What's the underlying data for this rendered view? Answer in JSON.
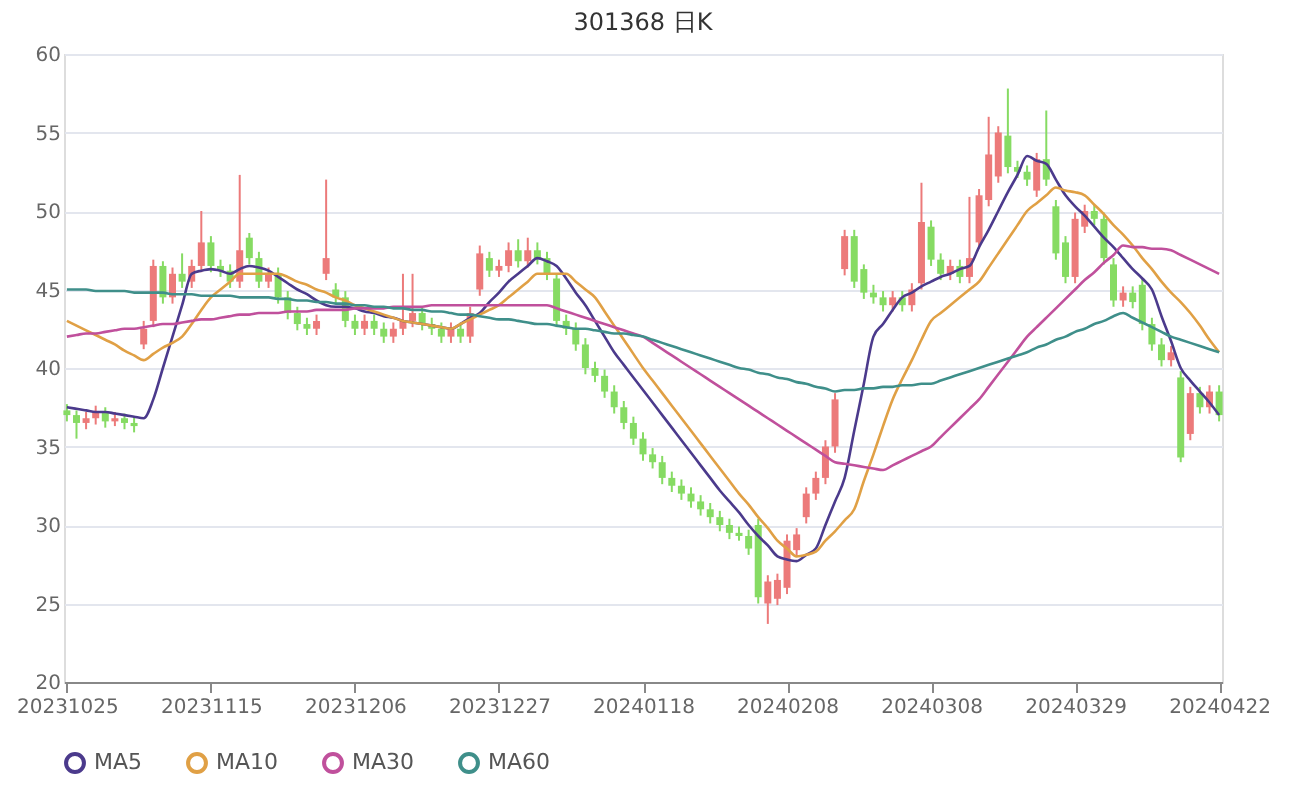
{
  "chart_data": {
    "type": "candlestick",
    "title": "301368    日K",
    "categories": [
      "20231025",
      null,
      null,
      null,
      null,
      null,
      null,
      null,
      null,
      null,
      null,
      null,
      null,
      null,
      null,
      "20231115",
      null,
      null,
      null,
      null,
      null,
      null,
      null,
      null,
      null,
      null,
      null,
      null,
      null,
      null,
      "20231206",
      null,
      null,
      null,
      null,
      null,
      null,
      null,
      null,
      null,
      null,
      null,
      null,
      null,
      null,
      "20231227",
      null,
      null,
      null,
      null,
      null,
      null,
      null,
      null,
      null,
      null,
      null,
      null,
      null,
      null,
      "20240118",
      null,
      null,
      null,
      null,
      null,
      null,
      null,
      null,
      null,
      null,
      null,
      null,
      null,
      null,
      "20240208",
      null,
      null,
      null,
      null,
      null,
      null,
      null,
      null,
      null,
      null,
      null,
      null,
      null,
      null,
      "20240308",
      null,
      null,
      null,
      null,
      null,
      null,
      null,
      null,
      null,
      null,
      null,
      null,
      null,
      null,
      "20240329",
      null,
      null,
      null,
      null,
      null,
      null,
      null,
      null,
      null,
      null,
      null,
      null,
      null,
      null,
      "20240422"
    ],
    "ohlc": [
      [
        37.3,
        37.7,
        36.6,
        37.0
      ],
      [
        37.0,
        37.3,
        35.5,
        36.5
      ],
      [
        36.5,
        37.2,
        36.1,
        36.8
      ],
      [
        36.8,
        37.6,
        36.4,
        37.2
      ],
      [
        37.2,
        37.5,
        36.2,
        36.6
      ],
      [
        36.6,
        37.2,
        36.3,
        36.8
      ],
      [
        36.8,
        37.1,
        36.1,
        36.5
      ],
      [
        36.5,
        36.9,
        35.9,
        36.3
      ],
      [
        41.5,
        43.0,
        41.2,
        42.5
      ],
      [
        43.0,
        46.9,
        42.6,
        46.5
      ],
      [
        46.5,
        46.8,
        44.1,
        44.5
      ],
      [
        44.5,
        46.4,
        44.1,
        46.0
      ],
      [
        46.0,
        47.3,
        45.1,
        45.5
      ],
      [
        45.5,
        46.9,
        45.1,
        46.5
      ],
      [
        46.5,
        50.0,
        46.1,
        48.0
      ],
      [
        48.0,
        48.4,
        46.1,
        46.5
      ],
      [
        46.5,
        46.9,
        45.8,
        46.2
      ],
      [
        46.2,
        46.6,
        45.1,
        45.5
      ],
      [
        45.5,
        52.3,
        45.1,
        47.5
      ],
      [
        48.3,
        48.6,
        46.6,
        47.0
      ],
      [
        47.0,
        47.4,
        45.1,
        45.5
      ],
      [
        45.5,
        46.4,
        45.1,
        46.0
      ],
      [
        46.0,
        46.4,
        44.1,
        44.5
      ],
      [
        44.5,
        44.9,
        43.1,
        43.5
      ],
      [
        43.5,
        43.9,
        42.4,
        42.8
      ],
      [
        42.8,
        43.2,
        42.1,
        42.5
      ],
      [
        42.5,
        43.4,
        42.1,
        43.0
      ],
      [
        46.0,
        52.0,
        45.6,
        47.0
      ],
      [
        45.0,
        45.4,
        44.1,
        44.5
      ],
      [
        44.5,
        44.9,
        42.6,
        43.0
      ],
      [
        43.0,
        43.4,
        42.1,
        42.5
      ],
      [
        42.5,
        43.4,
        42.1,
        43.0
      ],
      [
        43.0,
        43.4,
        42.1,
        42.5
      ],
      [
        42.5,
        42.9,
        41.6,
        42.0
      ],
      [
        42.0,
        42.9,
        41.6,
        42.5
      ],
      [
        42.5,
        46.0,
        42.1,
        43.0
      ],
      [
        43.0,
        46.0,
        42.6,
        43.5
      ],
      [
        43.5,
        43.9,
        42.4,
        42.8
      ],
      [
        42.8,
        43.2,
        42.1,
        42.5
      ],
      [
        42.5,
        42.9,
        41.6,
        42.0
      ],
      [
        42.0,
        42.9,
        41.6,
        42.5
      ],
      [
        42.5,
        42.9,
        41.6,
        42.0
      ],
      [
        42.0,
        43.9,
        41.6,
        43.5
      ],
      [
        45.0,
        47.8,
        44.6,
        47.3
      ],
      [
        47.0,
        47.4,
        45.8,
        46.2
      ],
      [
        46.2,
        46.9,
        45.8,
        46.5
      ],
      [
        46.5,
        48.0,
        46.1,
        47.5
      ],
      [
        47.5,
        48.2,
        46.4,
        46.8
      ],
      [
        46.8,
        48.3,
        46.4,
        47.5
      ],
      [
        47.5,
        48.0,
        46.6,
        47.0
      ],
      [
        47.0,
        47.4,
        45.6,
        46.0
      ],
      [
        45.7,
        46.0,
        42.6,
        43.0
      ],
      [
        43.0,
        43.4,
        42.1,
        42.5
      ],
      [
        42.5,
        42.9,
        41.1,
        41.5
      ],
      [
        41.5,
        41.9,
        39.6,
        40.0
      ],
      [
        40.0,
        40.4,
        39.1,
        39.5
      ],
      [
        39.5,
        39.9,
        38.1,
        38.5
      ],
      [
        38.5,
        38.9,
        37.1,
        37.5
      ],
      [
        37.5,
        37.9,
        36.1,
        36.5
      ],
      [
        36.5,
        36.9,
        35.1,
        35.5
      ],
      [
        35.5,
        35.9,
        34.1,
        34.5
      ],
      [
        34.5,
        34.9,
        33.6,
        34.0
      ],
      [
        34.0,
        34.4,
        32.6,
        33.0
      ],
      [
        33.0,
        33.4,
        32.1,
        32.5
      ],
      [
        32.5,
        32.9,
        31.6,
        32.0
      ],
      [
        32.0,
        32.4,
        31.1,
        31.5
      ],
      [
        31.5,
        31.9,
        30.6,
        31.0
      ],
      [
        31.0,
        31.4,
        30.1,
        30.5
      ],
      [
        30.5,
        30.9,
        29.6,
        30.0
      ],
      [
        30.0,
        30.4,
        29.1,
        29.5
      ],
      [
        29.5,
        29.9,
        29.0,
        29.3
      ],
      [
        29.3,
        29.7,
        28.1,
        28.5
      ],
      [
        30.0,
        30.4,
        25.0,
        25.4
      ],
      [
        25.0,
        26.8,
        23.7,
        26.4
      ],
      [
        25.3,
        26.9,
        24.9,
        26.5
      ],
      [
        26.0,
        29.4,
        25.6,
        29.0
      ],
      [
        28.4,
        29.8,
        28.0,
        29.4
      ],
      [
        30.5,
        32.4,
        30.1,
        32.0
      ],
      [
        32.0,
        33.4,
        31.6,
        33.0
      ],
      [
        33.0,
        35.4,
        32.6,
        35.0
      ],
      [
        35.0,
        38.4,
        34.6,
        38.0
      ],
      [
        46.3,
        48.8,
        45.9,
        48.4
      ],
      [
        48.4,
        48.8,
        45.1,
        45.5
      ],
      [
        46.3,
        46.6,
        44.4,
        44.8
      ],
      [
        44.8,
        45.3,
        44.1,
        44.5
      ],
      [
        44.5,
        44.9,
        43.6,
        44.0
      ],
      [
        44.0,
        44.9,
        43.6,
        44.5
      ],
      [
        44.5,
        44.9,
        43.6,
        44.0
      ],
      [
        44.0,
        45.4,
        43.6,
        45.0
      ],
      [
        45.4,
        51.8,
        45.0,
        49.3
      ],
      [
        49.0,
        49.4,
        46.5,
        46.9
      ],
      [
        46.9,
        47.3,
        45.6,
        46.0
      ],
      [
        46.0,
        46.9,
        45.6,
        46.5
      ],
      [
        46.5,
        46.9,
        45.4,
        45.8
      ],
      [
        45.8,
        50.9,
        45.4,
        47.0
      ],
      [
        48.0,
        51.4,
        47.6,
        51.0
      ],
      [
        50.7,
        56.0,
        50.3,
        53.6
      ],
      [
        52.2,
        55.4,
        51.8,
        55.0
      ],
      [
        54.8,
        57.8,
        52.4,
        52.8
      ],
      [
        52.8,
        53.2,
        52.1,
        52.5
      ],
      [
        52.5,
        52.9,
        51.6,
        52.0
      ],
      [
        51.3,
        53.7,
        50.9,
        53.3
      ],
      [
        53.3,
        56.4,
        51.6,
        52.0
      ],
      [
        50.3,
        50.7,
        46.9,
        47.3
      ],
      [
        48.0,
        48.4,
        45.4,
        45.8
      ],
      [
        45.8,
        49.9,
        45.4,
        49.5
      ],
      [
        49.0,
        50.4,
        48.6,
        50.0
      ],
      [
        50.0,
        50.4,
        49.1,
        49.5
      ],
      [
        49.5,
        49.9,
        46.6,
        47.0
      ],
      [
        46.6,
        47.0,
        43.9,
        44.3
      ],
      [
        44.3,
        45.2,
        43.9,
        44.8
      ],
      [
        44.8,
        45.2,
        43.8,
        44.2
      ],
      [
        45.3,
        45.7,
        42.4,
        42.8
      ],
      [
        42.8,
        43.2,
        41.1,
        41.5
      ],
      [
        41.5,
        41.9,
        40.1,
        40.5
      ],
      [
        40.5,
        41.4,
        40.1,
        41.0
      ],
      [
        39.4,
        39.8,
        34.0,
        34.3
      ],
      [
        35.8,
        38.8,
        35.4,
        38.4
      ],
      [
        38.4,
        38.8,
        37.1,
        37.5
      ],
      [
        37.5,
        38.9,
        37.1,
        38.5
      ],
      [
        38.5,
        38.9,
        36.6,
        37.0
      ]
    ],
    "series": [
      {
        "name": "MA5",
        "type": "line",
        "color": "#4b3a8c",
        "values": [
          37.5,
          37.4,
          37.3,
          37.2,
          37.2,
          37.1,
          37.0,
          36.9,
          36.8,
          38,
          40,
          42,
          44,
          46,
          46.2,
          46.3,
          46.2,
          46.0,
          46.3,
          46.5,
          46.4,
          46.2,
          45.8,
          45.4,
          45.0,
          44.7,
          44.3,
          44.0,
          43.9,
          43.9,
          43.8,
          43.6,
          43.5,
          43.3,
          43.2,
          43.0,
          42.9,
          42.8,
          42.7,
          42.6,
          42.5,
          42.8,
          43.2,
          43.5,
          44.2,
          44.8,
          45.5,
          46.0,
          46.5,
          47.0,
          46.8,
          46.5,
          45.7,
          44.8,
          44.0,
          43.0,
          42.0,
          41.0,
          40.2,
          39.4,
          38.6,
          37.8,
          37.0,
          36.2,
          35.4,
          34.6,
          33.8,
          33.0,
          32.2,
          31.5,
          30.8,
          30.0,
          29.3,
          28.7,
          28.0,
          27.8,
          27.7,
          28.1,
          28.5,
          30.0,
          31.5,
          33.0,
          36.0,
          39.0,
          42.0,
          42.8,
          43.7,
          44.5,
          44.8,
          45.2,
          45.5,
          45.8,
          46.0,
          46.3,
          46.5,
          47.7,
          48.8,
          50.0,
          51.2,
          52.3,
          53.5,
          53.2,
          53.0,
          52.0,
          51.0,
          50.3,
          49.7,
          49.0,
          48.3,
          47.7,
          47.0,
          46.3,
          45.7,
          45.0,
          43.3,
          41.7,
          40.0,
          39.2,
          38.5,
          37.8,
          37.0
        ]
      },
      {
        "name": "MA10",
        "type": "line",
        "color": "#e0a045",
        "values": [
          43.0,
          42.7,
          42.4,
          42.1,
          41.8,
          41.5,
          41.1,
          40.8,
          40.5,
          40.9,
          41.3,
          41.6,
          42.0,
          42.8,
          43.7,
          44.5,
          45.0,
          45.5,
          46.0,
          46.0,
          46.0,
          46.0,
          46.0,
          45.8,
          45.5,
          45.3,
          45.0,
          44.8,
          44.5,
          44.3,
          44.0,
          43.8,
          43.6,
          43.4,
          43.2,
          43.0,
          42.9,
          42.8,
          42.7,
          42.6,
          42.5,
          42.8,
          43.1,
          43.4,
          43.7,
          44.0,
          44.5,
          45.0,
          45.5,
          46.0,
          46.0,
          46.0,
          46.0,
          45.5,
          45.0,
          44.5,
          43.6,
          42.7,
          41.8,
          40.9,
          40.0,
          39.2,
          38.4,
          37.6,
          36.8,
          36.0,
          35.2,
          34.4,
          33.6,
          32.8,
          32.0,
          31.3,
          30.5,
          29.8,
          29.0,
          28.5,
          28.0,
          28.1,
          28.3,
          29.0,
          29.6,
          30.3,
          31.0,
          32.8,
          34.5,
          36.3,
          38.0,
          39.3,
          40.5,
          41.8,
          43.0,
          43.5,
          44.0,
          44.5,
          45.0,
          45.5,
          46.4,
          47.3,
          48.2,
          49.1,
          50.0,
          50.5,
          51.0,
          51.5,
          51.3,
          51.2,
          51.0,
          50.4,
          49.8,
          49.1,
          48.5,
          47.8,
          47.0,
          46.3,
          45.5,
          44.8,
          44.2,
          43.5,
          42.7,
          41.8,
          41.0
        ]
      },
      {
        "name": "MA30",
        "type": "line",
        "color": "#c0509c",
        "values": [
          42.0,
          42.1,
          42.2,
          42.2,
          42.3,
          42.4,
          42.5,
          42.5,
          42.6,
          42.7,
          42.8,
          42.8,
          42.9,
          43.0,
          43.1,
          43.1,
          43.2,
          43.3,
          43.4,
          43.4,
          43.5,
          43.5,
          43.5,
          43.6,
          43.6,
          43.6,
          43.7,
          43.7,
          43.7,
          43.7,
          43.8,
          43.8,
          43.8,
          43.8,
          43.9,
          43.9,
          43.9,
          43.9,
          44.0,
          44.0,
          44.0,
          44.0,
          44.0,
          44.0,
          44.0,
          44.0,
          44.0,
          44.0,
          44.0,
          44.0,
          44.0,
          43.8,
          43.6,
          43.4,
          43.2,
          43.0,
          42.8,
          42.6,
          42.4,
          42.2,
          42.0,
          41.6,
          41.2,
          40.8,
          40.4,
          40.0,
          39.6,
          39.2,
          38.8,
          38.4,
          38.0,
          37.6,
          37.2,
          36.8,
          36.4,
          36.0,
          35.6,
          35.2,
          34.8,
          34.4,
          34.0,
          33.9,
          33.8,
          33.7,
          33.6,
          33.5,
          33.8,
          34.1,
          34.4,
          34.7,
          35.0,
          35.6,
          36.2,
          36.8,
          37.4,
          38.0,
          38.8,
          39.6,
          40.4,
          41.2,
          42.0,
          42.6,
          43.2,
          43.8,
          44.4,
          45.0,
          45.6,
          46.1,
          46.7,
          47.2,
          47.8,
          47.7,
          47.7,
          47.6,
          47.6,
          47.5,
          47.2,
          46.9,
          46.6,
          46.3,
          46.0
        ]
      },
      {
        "name": "MA60",
        "type": "line",
        "color": "#3f8f8a",
        "values": [
          45.0,
          45.0,
          45.0,
          44.9,
          44.9,
          44.9,
          44.9,
          44.8,
          44.8,
          44.8,
          44.8,
          44.7,
          44.7,
          44.7,
          44.6,
          44.6,
          44.6,
          44.6,
          44.5,
          44.5,
          44.5,
          44.5,
          44.4,
          44.4,
          44.3,
          44.3,
          44.2,
          44.2,
          44.1,
          44.1,
          44.0,
          44.0,
          43.9,
          43.9,
          43.8,
          43.8,
          43.7,
          43.7,
          43.6,
          43.6,
          43.5,
          43.4,
          43.4,
          43.3,
          43.2,
          43.1,
          43.1,
          43.0,
          42.9,
          42.8,
          42.8,
          42.7,
          42.6,
          42.5,
          42.5,
          42.4,
          42.3,
          42.2,
          42.2,
          42.1,
          42.0,
          41.8,
          41.6,
          41.4,
          41.2,
          41.0,
          40.8,
          40.6,
          40.4,
          40.2,
          40.0,
          39.9,
          39.7,
          39.6,
          39.4,
          39.3,
          39.1,
          39.0,
          38.8,
          38.7,
          38.5,
          38.6,
          38.6,
          38.7,
          38.7,
          38.8,
          38.8,
          38.9,
          38.9,
          39.0,
          39.0,
          39.2,
          39.4,
          39.6,
          39.8,
          40.0,
          40.2,
          40.4,
          40.6,
          40.8,
          41.0,
          41.3,
          41.5,
          41.8,
          42.0,
          42.3,
          42.5,
          42.8,
          43.0,
          43.3,
          43.5,
          43.2,
          42.9,
          42.6,
          42.3,
          42.0,
          41.8,
          41.6,
          41.4,
          41.2,
          41.0
        ]
      }
    ],
    "ylim": [
      20,
      60
    ],
    "yticks": [
      20,
      25,
      30,
      35,
      40,
      45,
      50,
      55,
      60
    ],
    "grid": "y",
    "legend": "bottom",
    "marker": "none"
  }
}
